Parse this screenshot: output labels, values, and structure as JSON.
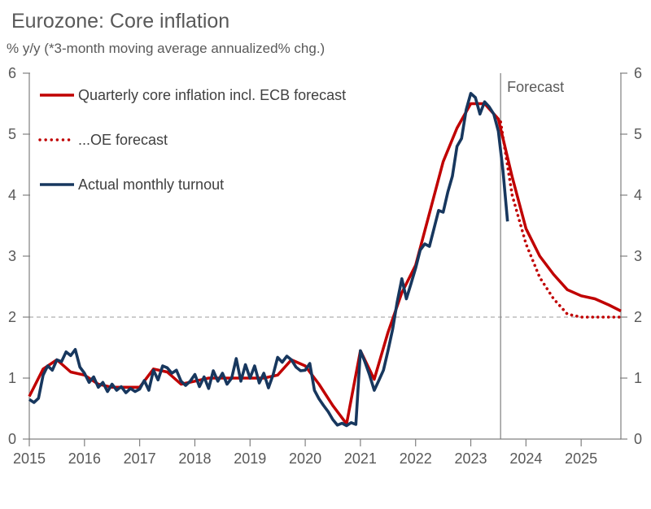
{
  "header": {
    "title": "Eurozone: Core inflation",
    "subtitle": "% y/y (*3-month moving average annualized% chg.)"
  },
  "chart_data": {
    "type": "line",
    "title": "Eurozone: Core inflation",
    "subtitle": "% y/y (*3-month moving average annualized% chg.)",
    "grid": false,
    "legend_position": "top-left-inside",
    "x_axis": {
      "min": 2015,
      "max": 2025.72,
      "tick_values": [
        2015,
        2016,
        2017,
        2018,
        2019,
        2020,
        2021,
        2022,
        2023,
        2024,
        2025
      ],
      "tick_labels": [
        "2015",
        "2016",
        "2017",
        "2018",
        "2019",
        "2020",
        "2021",
        "2022",
        "2023",
        "2024",
        "2025"
      ]
    },
    "y_axis": {
      "min": 0,
      "max": 6,
      "dual_sided": true,
      "tick_values": [
        0,
        1,
        2,
        3,
        4,
        5,
        6
      ],
      "tick_labels": [
        "0",
        "1",
        "2",
        "3",
        "4",
        "5",
        "6"
      ]
    },
    "annotations": {
      "forecast_divider_x": 2023.54,
      "forecast_label": "Forecast",
      "reference_line_y": 2
    },
    "colors": {
      "red": "#c00000",
      "navy": "#17375e",
      "axis_gray": "#808080",
      "text_gray": "#595959"
    },
    "series": [
      {
        "name": "Quarterly core inflation incl. ECB forecast",
        "style": "solid",
        "color": "#c00000",
        "width": 3.5,
        "x": [
          2015,
          2015.25,
          2015.5,
          2015.75,
          2016,
          2016.25,
          2016.5,
          2016.75,
          2017,
          2017.25,
          2017.5,
          2017.75,
          2018,
          2018.25,
          2018.5,
          2018.75,
          2019,
          2019.25,
          2019.5,
          2019.75,
          2020,
          2020.25,
          2020.5,
          2020.75,
          2021,
          2021.25,
          2021.5,
          2021.75,
          2022,
          2022.25,
          2022.5,
          2022.75,
          2023,
          2023.25,
          2023.5,
          2023.75,
          2024,
          2024.25,
          2024.5,
          2024.75,
          2025,
          2025.25,
          2025.5,
          2025.72
        ],
        "values": [
          0.7,
          1.15,
          1.3,
          1.1,
          1.05,
          0.9,
          0.85,
          0.85,
          0.85,
          1.15,
          1.1,
          0.9,
          0.95,
          1.0,
          1.0,
          1.0,
          1.0,
          1.0,
          1.05,
          1.3,
          1.2,
          0.9,
          0.55,
          0.25,
          1.45,
          0.98,
          1.75,
          2.4,
          2.85,
          3.7,
          4.55,
          5.1,
          5.5,
          5.5,
          5.25,
          4.3,
          3.45,
          3.0,
          2.7,
          2.45,
          2.35,
          2.3,
          2.2,
          2.1
        ]
      },
      {
        "name": "...OE forecast",
        "style": "dotted",
        "color": "#c00000",
        "width": 3.6,
        "x": [
          2023.54,
          2023.75,
          2024.0,
          2024.25,
          2024.5,
          2024.75,
          2025.0,
          2025.25,
          2025.5,
          2025.72
        ],
        "values": [
          5.2,
          4.0,
          3.2,
          2.65,
          2.3,
          2.05,
          2.0,
          2.0,
          2.0,
          2.0
        ]
      },
      {
        "name": "Actual monthly turnout",
        "style": "solid",
        "color": "#17375e",
        "width": 3.6,
        "x_start": 2015.0,
        "x_step": 0.08333333,
        "values": [
          0.65,
          0.6,
          0.67,
          1.05,
          1.2,
          1.13,
          1.3,
          1.27,
          1.43,
          1.37,
          1.47,
          1.18,
          1.08,
          0.93,
          1.02,
          0.85,
          0.93,
          0.78,
          0.9,
          0.8,
          0.86,
          0.76,
          0.83,
          0.78,
          0.82,
          0.96,
          0.8,
          1.13,
          0.97,
          1.2,
          1.17,
          1.08,
          1.13,
          0.95,
          0.88,
          0.95,
          1.06,
          0.86,
          1.02,
          0.83,
          1.12,
          0.95,
          1.08,
          0.9,
          1.0,
          1.32,
          0.95,
          1.22,
          1.0,
          1.2,
          0.92,
          1.08,
          0.84,
          1.05,
          1.34,
          1.26,
          1.36,
          1.3,
          1.18,
          1.12,
          1.13,
          1.24,
          0.8,
          0.66,
          0.55,
          0.45,
          0.32,
          0.23,
          0.26,
          0.22,
          0.27,
          0.24,
          1.45,
          1.26,
          1.05,
          0.8,
          0.96,
          1.13,
          1.45,
          1.8,
          2.25,
          2.63,
          2.3,
          2.55,
          2.8,
          3.1,
          3.2,
          3.16,
          3.45,
          3.75,
          3.72,
          4.05,
          4.31,
          4.8,
          4.93,
          5.4,
          5.67,
          5.6,
          5.33,
          5.53,
          5.45,
          5.33,
          5.05,
          4.4,
          3.57
        ]
      }
    ]
  }
}
